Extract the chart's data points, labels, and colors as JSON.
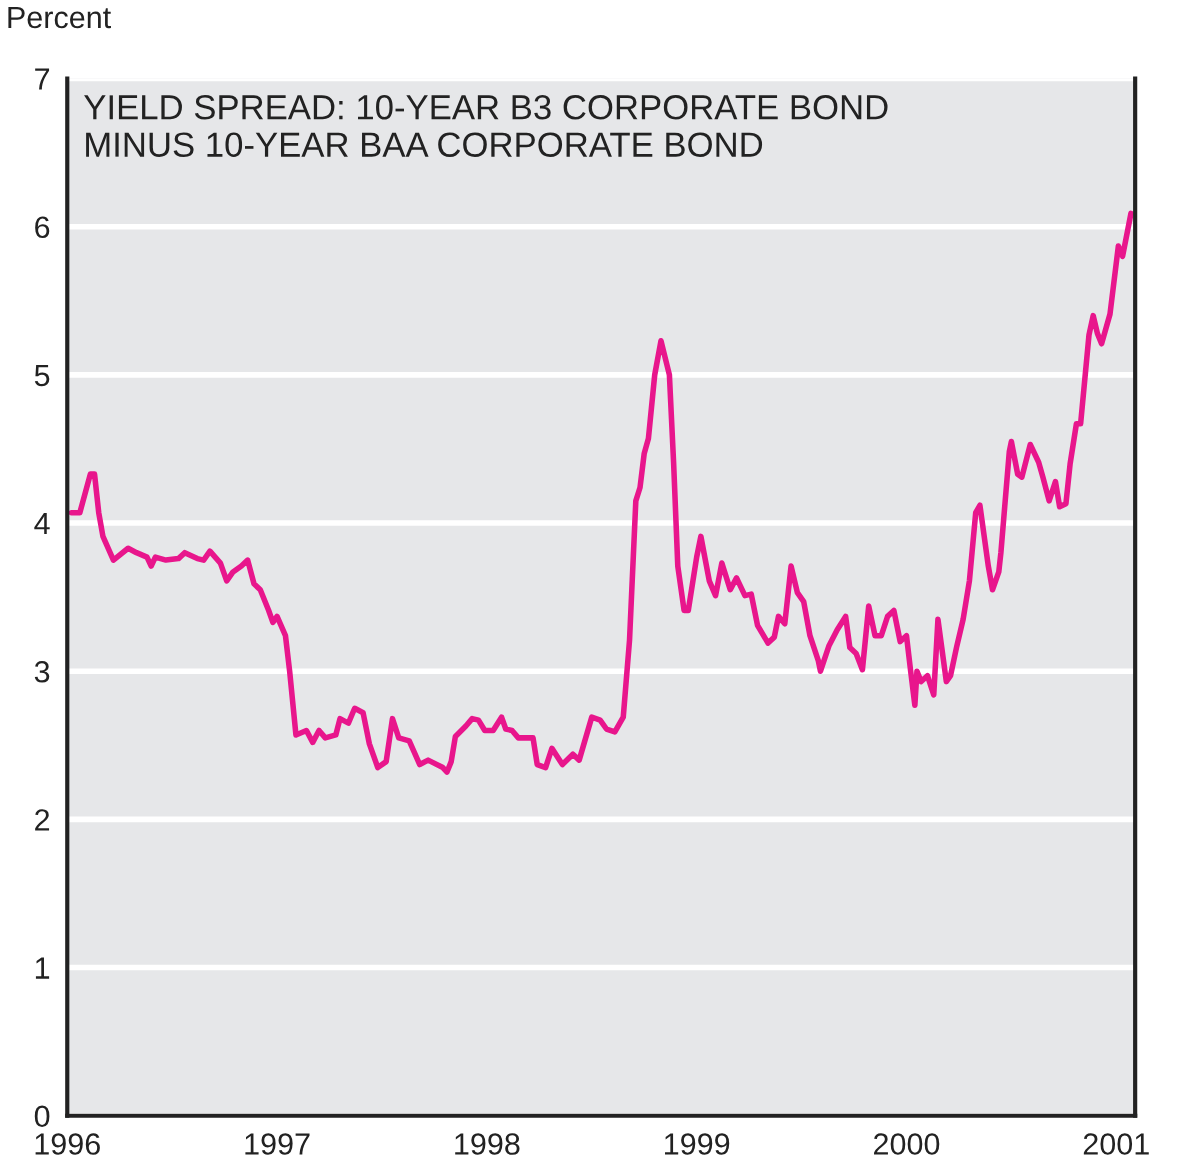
{
  "chart_data": {
    "type": "line",
    "title": "YIELD SPREAD: 10-YEAR B3 CORPORATE BOND\nMINUS 10-YEAR BAA CORPORATE BOND",
    "ylabel": "Percent",
    "xlim": [
      1996,
      2001.09
    ],
    "xticks": [
      1996,
      1997,
      1998,
      1999,
      2000,
      2001
    ],
    "ylim": [
      0,
      7
    ],
    "yticks": [
      0,
      1,
      2,
      3,
      4,
      5,
      6,
      7
    ],
    "grid": "y",
    "series": [
      {
        "color": "#e8168c",
        "x": [
          1996.02,
          1996.06,
          1996.11,
          1996.13,
          1996.15,
          1996.17,
          1996.22,
          1996.29,
          1996.33,
          1996.38,
          1996.4,
          1996.42,
          1996.47,
          1996.53,
          1996.56,
          1996.62,
          1996.65,
          1996.68,
          1996.73,
          1996.76,
          1996.79,
          1996.83,
          1996.86,
          1996.89,
          1996.92,
          1996.96,
          1996.98,
          1997.0,
          1997.04,
          1997.06,
          1997.09,
          1997.14,
          1997.17,
          1997.2,
          1997.23,
          1997.28,
          1997.3,
          1997.34,
          1997.37,
          1997.41,
          1997.44,
          1997.48,
          1997.52,
          1997.55,
          1997.58,
          1997.63,
          1997.68,
          1997.72,
          1997.79,
          1997.81,
          1997.83,
          1997.85,
          1997.9,
          1997.93,
          1997.96,
          1997.99,
          1998.03,
          1998.07,
          1998.09,
          1998.12,
          1998.15,
          1998.22,
          1998.24,
          1998.28,
          1998.31,
          1998.36,
          1998.41,
          1998.44,
          1998.5,
          1998.54,
          1998.57,
          1998.61,
          1998.65,
          1998.68,
          1998.71,
          1998.73,
          1998.75,
          1998.77,
          1998.8,
          1998.83,
          1998.87,
          1998.89,
          1998.91,
          1998.94,
          1998.96,
          1999.0,
          1999.02,
          1999.06,
          1999.09,
          1999.12,
          1999.16,
          1999.19,
          1999.23,
          1999.26,
          1999.29,
          1999.34,
          1999.37,
          1999.39,
          1999.42,
          1999.45,
          1999.48,
          1999.51,
          1999.54,
          1999.58,
          1999.59,
          1999.63,
          1999.67,
          1999.71,
          1999.73,
          1999.76,
          1999.79,
          1999.82,
          1999.85,
          1999.88,
          1999.91,
          1999.94,
          1999.97,
          2000.0,
          2000.02,
          2000.04,
          2000.05,
          2000.07,
          2000.1,
          2000.13,
          2000.15,
          2000.19,
          2000.21,
          2000.24,
          2000.27,
          2000.3,
          2000.33,
          2000.35,
          2000.39,
          2000.41,
          2000.44,
          2000.45,
          2000.49,
          2000.5,
          2000.53,
          2000.55,
          2000.59,
          2000.63,
          2000.65,
          2000.68,
          2000.71,
          2000.73,
          2000.76,
          2000.78,
          2000.81,
          2000.83,
          2000.87,
          2000.89,
          2000.91,
          2000.93,
          2000.97,
          2001.01,
          2001.03,
          2001.07
        ],
        "values": [
          4.07,
          4.07,
          4.33,
          4.33,
          4.07,
          3.91,
          3.75,
          3.83,
          3.8,
          3.77,
          3.71,
          3.77,
          3.75,
          3.76,
          3.8,
          3.76,
          3.75,
          3.81,
          3.73,
          3.61,
          3.67,
          3.71,
          3.75,
          3.59,
          3.55,
          3.41,
          3.33,
          3.37,
          3.24,
          3.0,
          2.57,
          2.6,
          2.52,
          2.6,
          2.55,
          2.57,
          2.68,
          2.65,
          2.75,
          2.72,
          2.51,
          2.35,
          2.39,
          2.68,
          2.55,
          2.53,
          2.37,
          2.4,
          2.35,
          2.32,
          2.39,
          2.56,
          2.63,
          2.68,
          2.67,
          2.6,
          2.6,
          2.69,
          2.61,
          2.6,
          2.55,
          2.55,
          2.37,
          2.35,
          2.48,
          2.37,
          2.44,
          2.4,
          2.69,
          2.67,
          2.61,
          2.59,
          2.69,
          3.21,
          4.15,
          4.24,
          4.47,
          4.57,
          5.0,
          5.23,
          5.0,
          4.41,
          3.71,
          3.41,
          3.41,
          3.77,
          3.91,
          3.61,
          3.51,
          3.73,
          3.55,
          3.63,
          3.51,
          3.52,
          3.31,
          3.19,
          3.23,
          3.37,
          3.32,
          3.71,
          3.53,
          3.47,
          3.24,
          3.07,
          3.0,
          3.17,
          3.28,
          3.37,
          3.16,
          3.12,
          3.01,
          3.44,
          3.24,
          3.24,
          3.37,
          3.41,
          3.2,
          3.24,
          3.0,
          2.77,
          3.0,
          2.93,
          2.97,
          2.84,
          3.35,
          2.93,
          2.97,
          3.17,
          3.35,
          3.61,
          4.07,
          4.12,
          3.71,
          3.55,
          3.67,
          3.8,
          4.48,
          4.55,
          4.33,
          4.31,
          4.53,
          4.41,
          4.31,
          4.15,
          4.28,
          4.11,
          4.13,
          4.4,
          4.67,
          4.67,
          5.27,
          5.4,
          5.28,
          5.21,
          5.41,
          5.87,
          5.8,
          6.09
        ]
      }
    ]
  }
}
